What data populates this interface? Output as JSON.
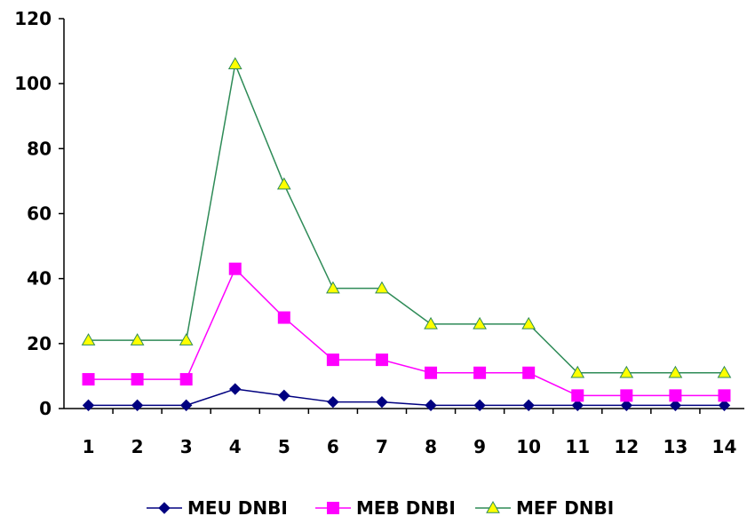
{
  "chart_data": {
    "type": "line",
    "title": "",
    "xlabel": "",
    "ylabel": "",
    "categories": [
      "1",
      "2",
      "3",
      "4",
      "5",
      "6",
      "7",
      "8",
      "9",
      "10",
      "11",
      "12",
      "13",
      "14"
    ],
    "ylim": [
      0,
      120
    ],
    "yticks": [
      "0",
      "20",
      "40",
      "60",
      "80",
      "100",
      "120"
    ],
    "grid": false,
    "legend_position": "bottom",
    "series": [
      {
        "name": "MEU DNBI",
        "values": [
          1,
          1,
          1,
          6,
          4,
          2,
          2,
          1,
          1,
          1,
          1,
          1,
          1,
          1
        ],
        "color": "#000080",
        "marker": "diamond",
        "marker_fill": "#000080"
      },
      {
        "name": "MEB DNBI",
        "values": [
          9,
          9,
          9,
          43,
          28,
          15,
          15,
          11,
          11,
          11,
          4,
          4,
          4,
          4
        ],
        "color": "#FF00FF",
        "marker": "square",
        "marker_fill": "#FF00FF"
      },
      {
        "name": "MEF DNBI",
        "values": [
          21,
          21,
          21,
          106,
          69,
          37,
          37,
          26,
          26,
          26,
          11,
          11,
          11,
          11
        ],
        "color": "#2E8B57",
        "marker": "triangle",
        "marker_fill": "#FFFF00"
      }
    ]
  }
}
